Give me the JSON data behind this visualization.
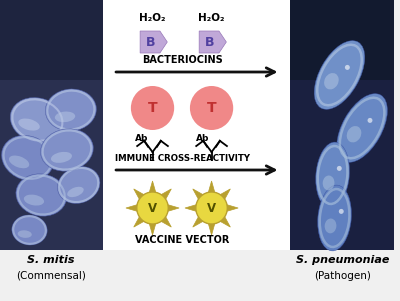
{
  "bg_color": "#f0f0f0",
  "left_bg": "#2a3050",
  "right_bg": "#1a2040",
  "center_bg": "#ffffff",
  "bacteriocin_color": "#c0a8d8",
  "bacteriocin_edge": "#9878b8",
  "t_cell_color": "#f08888",
  "t_cell_edge": "#e06060",
  "vaccine_spike_color": "#b8a030",
  "vaccine_fill": "#e8d840",
  "vaccine_text_color": "#505000",
  "h2o2_label": "H₂O₂",
  "bacteriocins_label": "BACTERIOCINS",
  "immune_label": "IMMUNE CROSS-REACTIVITY",
  "vaccine_label": "VACCINE VECTOR",
  "label_left_name": "S. mitis",
  "label_left_sub": "(Commensal)",
  "label_right_name": "S. pneumoniae",
  "label_right_sub": "(Pathogen)",
  "cell_color_mitis": "#8090c8",
  "cell_highlight_mitis": "#b0c0e8",
  "cell_color_pneumo": "#7088c0",
  "cell_highlight_pneumo": "#a8c0e0",
  "arrow_color": "#111111",
  "text_color": "#111111"
}
